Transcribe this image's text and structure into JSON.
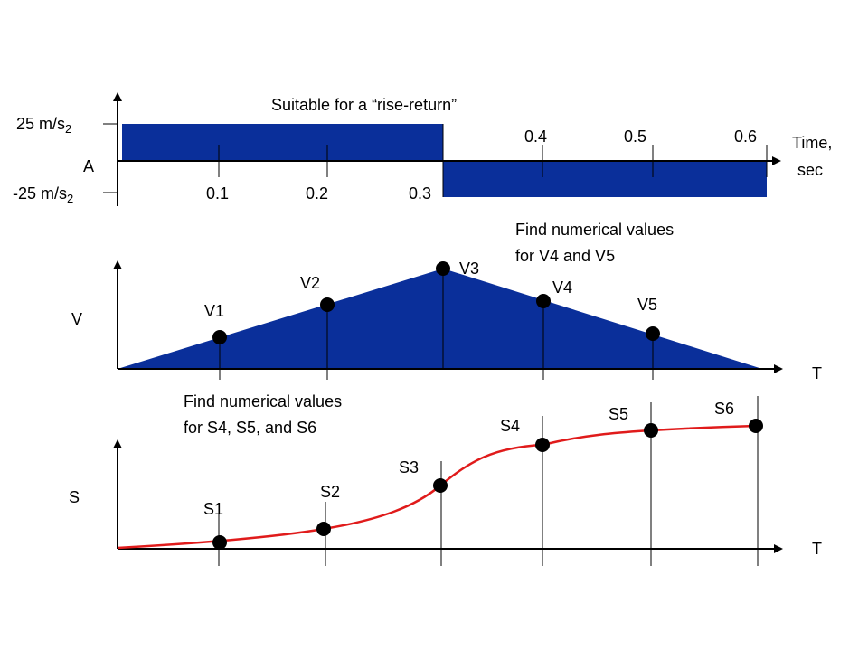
{
  "acceleration_plot": {
    "title": "Suitable for a “rise-return”",
    "y_label": "A",
    "y_top": {
      "text": "25 m/s",
      "sup": "2"
    },
    "y_bottom": {
      "text": "-25 m/s",
      "sup": "2"
    },
    "x_label": [
      "Time,",
      "sec"
    ],
    "ticks": [
      "0.1",
      "0.2",
      "0.3",
      "0.4",
      "0.5",
      "0.6"
    ]
  },
  "velocity_plot": {
    "y_label": "V",
    "x_label": "T",
    "note": [
      "Find numerical values",
      "for V4 and V5"
    ],
    "points": [
      "V1",
      "V2",
      "V3",
      "V4",
      "V5"
    ]
  },
  "displacement_plot": {
    "y_label": "S",
    "x_label": "T",
    "note": [
      "Find numerical values",
      "for S4, S5, and S6"
    ],
    "points": [
      "S1",
      "S2",
      "S3",
      "S4",
      "S5",
      "S6"
    ]
  }
}
